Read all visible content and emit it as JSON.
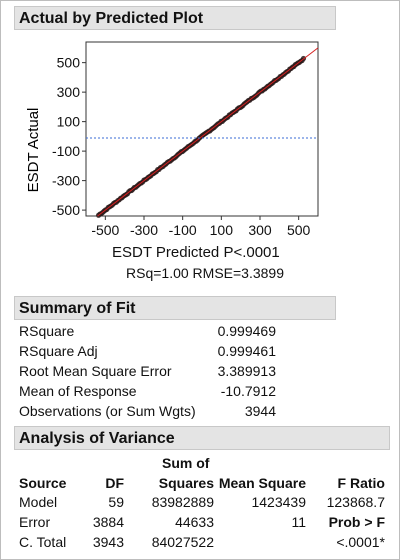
{
  "plot_panel": {
    "title": "Actual by Predicted Plot",
    "subtitle_line1": "ESDT Predicted P<.0001",
    "subtitle_line2": "RSq=1.00 RMSE=3.3899"
  },
  "chart_data": {
    "type": "scatter",
    "title": "Actual by Predicted Plot",
    "xlabel": "ESDT Predicted P<.0001",
    "ylabel": "ESDT Actual",
    "xlim": [
      -600,
      600
    ],
    "ylim": [
      -540,
      640
    ],
    "x_ticks": [
      -500,
      -300,
      -100,
      100,
      300,
      500
    ],
    "y_ticks": [
      -500,
      -300,
      -100,
      100,
      300,
      500
    ],
    "n_points": 3944,
    "fit_line": {
      "from": [
        -600,
        -600
      ],
      "to": [
        600,
        600
      ],
      "color": "#d62020"
    },
    "mean_line": {
      "y": -10.7912,
      "color": "#3a6bd6",
      "style": "dotted"
    },
    "point_color": "#2a1a1a",
    "grid": false
  },
  "summary_of_fit": {
    "title": "Summary of Fit",
    "rows": [
      {
        "label": "RSquare",
        "value": "0.999469"
      },
      {
        "label": "RSquare Adj",
        "value": "0.999461"
      },
      {
        "label": "Root Mean Square Error",
        "value": "3.389913"
      },
      {
        "label": "Mean of Response",
        "value": "-10.7912"
      },
      {
        "label": "Observations (or Sum Wgts)",
        "value": "3944"
      }
    ]
  },
  "anova": {
    "title": "Analysis of Variance",
    "header_sum_line1": "Sum of",
    "headers": [
      "Source",
      "DF",
      "Squares",
      "Mean Square",
      "F Ratio"
    ],
    "rows": [
      {
        "source": "Model",
        "df": "59",
        "ss": "83982889",
        "ms": "1423439",
        "f": "123868.7"
      },
      {
        "source": "Error",
        "df": "3884",
        "ss": "44633",
        "ms": "11",
        "f": "Prob > F"
      },
      {
        "source": "C. Total",
        "df": "3943",
        "ss": "84027522",
        "ms": "",
        "f": "<.0001*"
      }
    ]
  }
}
